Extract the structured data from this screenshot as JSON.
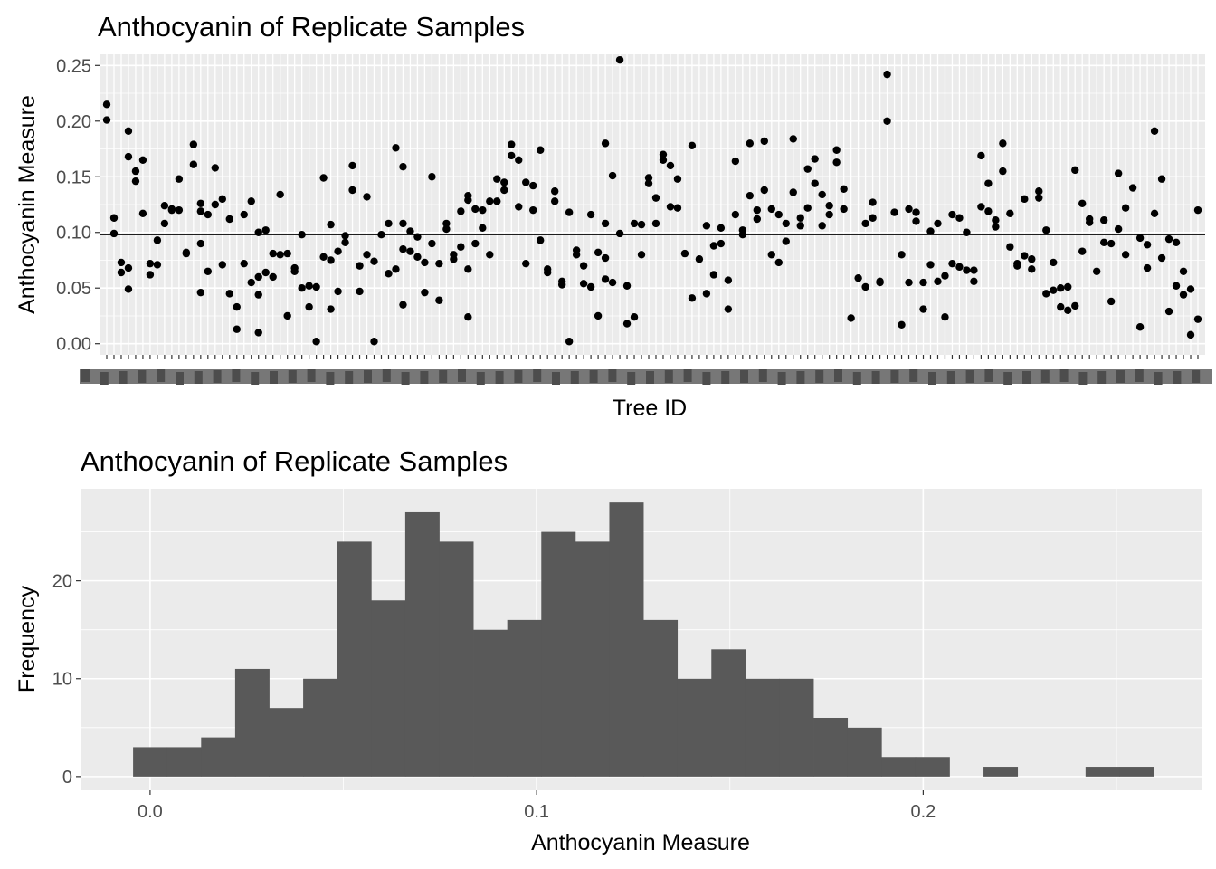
{
  "chart_data": [
    {
      "type": "scatter",
      "title": "Anthocyanin of Replicate Samples",
      "xlabel": "Tree ID",
      "ylabel": "Anthocyanin Measure",
      "ylim": [
        -0.01,
        0.26
      ],
      "yticks": [
        0.0,
        0.05,
        0.1,
        0.15,
        0.2,
        0.25
      ],
      "ytick_labels": [
        "0.00",
        "0.05",
        "0.10",
        "0.15",
        "0.20",
        "0.25"
      ],
      "grid": true,
      "hline": 0.098,
      "xtick_labels_note": "overlapping, illegible tree ID labels",
      "points": [
        [
          1,
          0.215
        ],
        [
          1,
          0.201
        ],
        [
          2,
          0.113
        ],
        [
          2,
          0.099
        ],
        [
          3,
          0.073
        ],
        [
          3,
          0.064
        ],
        [
          4,
          0.191
        ],
        [
          4,
          0.168
        ],
        [
          4,
          0.068
        ],
        [
          4,
          0.049
        ],
        [
          5,
          0.155
        ],
        [
          5,
          0.146
        ],
        [
          6,
          0.165
        ],
        [
          6,
          0.117
        ],
        [
          7,
          0.072
        ],
        [
          7,
          0.062
        ],
        [
          8,
          0.093
        ],
        [
          8,
          0.071
        ],
        [
          9,
          0.124
        ],
        [
          9,
          0.108
        ],
        [
          10,
          0.121
        ],
        [
          10,
          0.12
        ],
        [
          11,
          0.148
        ],
        [
          11,
          0.12
        ],
        [
          12,
          0.081
        ],
        [
          12,
          0.082
        ],
        [
          13,
          0.179
        ],
        [
          13,
          0.161
        ],
        [
          14,
          0.126
        ],
        [
          14,
          0.119
        ],
        [
          14,
          0.09
        ],
        [
          14,
          0.046
        ],
        [
          15,
          0.116
        ],
        [
          15,
          0.065
        ],
        [
          16,
          0.158
        ],
        [
          16,
          0.125
        ],
        [
          17,
          0.13
        ],
        [
          17,
          0.071
        ],
        [
          18,
          0.112
        ],
        [
          18,
          0.045
        ],
        [
          19,
          0.033
        ],
        [
          19,
          0.013
        ],
        [
          20,
          0.116
        ],
        [
          20,
          0.072
        ],
        [
          21,
          0.128
        ],
        [
          21,
          0.055
        ],
        [
          22,
          0.1
        ],
        [
          22,
          0.06
        ],
        [
          22,
          0.044
        ],
        [
          22,
          0.01
        ],
        [
          23,
          0.102
        ],
        [
          23,
          0.064
        ],
        [
          24,
          0.081
        ],
        [
          24,
          0.06
        ],
        [
          25,
          0.134
        ],
        [
          25,
          0.08
        ],
        [
          26,
          0.025
        ],
        [
          26,
          0.081
        ],
        [
          27,
          0.068
        ],
        [
          27,
          0.065
        ],
        [
          28,
          0.098
        ],
        [
          28,
          0.05
        ],
        [
          29,
          0.033
        ],
        [
          29,
          0.052
        ],
        [
          30,
          0.051
        ],
        [
          30,
          0.002
        ],
        [
          31,
          0.149
        ],
        [
          31,
          0.078
        ],
        [
          32,
          0.107
        ],
        [
          32,
          0.075
        ],
        [
          32,
          0.031
        ],
        [
          33,
          0.083
        ],
        [
          33,
          0.047
        ],
        [
          34,
          0.097
        ],
        [
          34,
          0.091
        ],
        [
          35,
          0.16
        ],
        [
          35,
          0.138
        ],
        [
          36,
          0.07
        ],
        [
          36,
          0.047
        ],
        [
          37,
          0.132
        ],
        [
          37,
          0.08
        ],
        [
          38,
          0.074
        ],
        [
          38,
          0.002
        ],
        [
          39,
          0.098
        ],
        [
          40,
          0.108
        ],
        [
          40,
          0.063
        ],
        [
          41,
          0.176
        ],
        [
          41,
          0.067
        ],
        [
          42,
          0.159
        ],
        [
          42,
          0.108
        ],
        [
          42,
          0.085
        ],
        [
          42,
          0.035
        ],
        [
          43,
          0.101
        ],
        [
          43,
          0.083
        ],
        [
          44,
          0.096
        ],
        [
          44,
          0.078
        ],
        [
          45,
          0.073
        ],
        [
          45,
          0.046
        ],
        [
          46,
          0.15
        ],
        [
          46,
          0.09
        ],
        [
          47,
          0.072
        ],
        [
          47,
          0.039
        ],
        [
          48,
          0.108
        ],
        [
          48,
          0.103
        ],
        [
          49,
          0.08
        ],
        [
          49,
          0.076
        ],
        [
          50,
          0.119
        ],
        [
          50,
          0.087
        ],
        [
          51,
          0.133
        ],
        [
          51,
          0.129
        ],
        [
          51,
          0.067
        ],
        [
          51,
          0.024
        ],
        [
          52,
          0.121
        ],
        [
          52,
          0.09
        ],
        [
          53,
          0.12
        ],
        [
          53,
          0.104
        ],
        [
          54,
          0.128
        ],
        [
          54,
          0.08
        ],
        [
          55,
          0.148
        ],
        [
          55,
          0.128
        ],
        [
          56,
          0.145
        ],
        [
          56,
          0.138
        ],
        [
          57,
          0.179
        ],
        [
          57,
          0.169
        ],
        [
          58,
          0.165
        ],
        [
          58,
          0.123
        ],
        [
          59,
          0.145
        ],
        [
          59,
          0.072
        ],
        [
          60,
          0.142
        ],
        [
          60,
          0.12
        ],
        [
          61,
          0.174
        ],
        [
          61,
          0.093
        ],
        [
          62,
          0.067
        ],
        [
          62,
          0.064
        ],
        [
          63,
          0.137
        ],
        [
          63,
          0.128
        ],
        [
          64,
          0.056
        ],
        [
          64,
          0.053
        ],
        [
          65,
          0.118
        ],
        [
          65,
          0.002
        ],
        [
          66,
          0.084
        ],
        [
          66,
          0.08
        ],
        [
          67,
          0.07
        ],
        [
          67,
          0.054
        ],
        [
          68,
          0.116
        ],
        [
          68,
          0.051
        ],
        [
          69,
          0.082
        ],
        [
          69,
          0.025
        ],
        [
          70,
          0.18
        ],
        [
          70,
          0.108
        ],
        [
          70,
          0.077
        ],
        [
          70,
          0.058
        ],
        [
          71,
          0.151
        ],
        [
          71,
          0.055
        ],
        [
          72,
          0.255
        ],
        [
          72,
          0.099
        ],
        [
          73,
          0.052
        ],
        [
          73,
          0.018
        ],
        [
          74,
          0.108
        ],
        [
          74,
          0.024
        ],
        [
          75,
          0.107
        ],
        [
          75,
          0.08
        ],
        [
          76,
          0.149
        ],
        [
          76,
          0.144
        ],
        [
          77,
          0.131
        ],
        [
          77,
          0.108
        ],
        [
          78,
          0.17
        ],
        [
          78,
          0.165
        ],
        [
          79,
          0.16
        ],
        [
          79,
          0.123
        ],
        [
          80,
          0.148
        ],
        [
          80,
          0.122
        ],
        [
          81,
          0.081
        ],
        [
          82,
          0.178
        ],
        [
          82,
          0.041
        ],
        [
          83,
          0.076
        ],
        [
          84,
          0.106
        ],
        [
          84,
          0.045
        ],
        [
          85,
          0.088
        ],
        [
          85,
          0.062
        ],
        [
          86,
          0.104
        ],
        [
          86,
          0.09
        ],
        [
          87,
          0.057
        ],
        [
          87,
          0.031
        ],
        [
          88,
          0.164
        ],
        [
          88,
          0.116
        ],
        [
          89,
          0.102
        ],
        [
          89,
          0.098
        ],
        [
          90,
          0.18
        ],
        [
          90,
          0.133
        ],
        [
          91,
          0.12
        ],
        [
          91,
          0.112
        ],
        [
          92,
          0.182
        ],
        [
          92,
          0.138
        ],
        [
          93,
          0.121
        ],
        [
          93,
          0.08
        ],
        [
          94,
          0.116
        ],
        [
          94,
          0.073
        ],
        [
          95,
          0.108
        ],
        [
          95,
          0.092
        ],
        [
          96,
          0.184
        ],
        [
          96,
          0.136
        ],
        [
          97,
          0.113
        ],
        [
          97,
          0.106
        ],
        [
          98,
          0.157
        ],
        [
          98,
          0.122
        ],
        [
          99,
          0.166
        ],
        [
          99,
          0.144
        ],
        [
          100,
          0.134
        ],
        [
          100,
          0.106
        ],
        [
          101,
          0.124
        ],
        [
          101,
          0.116
        ],
        [
          102,
          0.174
        ],
        [
          102,
          0.163
        ],
        [
          103,
          0.139
        ],
        [
          103,
          0.121
        ],
        [
          104,
          0.023
        ],
        [
          105,
          0.059
        ],
        [
          106,
          0.108
        ],
        [
          106,
          0.051
        ],
        [
          107,
          0.127
        ],
        [
          107,
          0.113
        ],
        [
          108,
          0.056
        ],
        [
          108,
          0.055
        ],
        [
          109,
          0.242
        ],
        [
          109,
          0.2
        ],
        [
          110,
          0.118
        ],
        [
          111,
          0.08
        ],
        [
          111,
          0.017
        ],
        [
          112,
          0.121
        ],
        [
          112,
          0.055
        ],
        [
          113,
          0.118
        ],
        [
          113,
          0.11
        ],
        [
          114,
          0.055
        ],
        [
          114,
          0.031
        ],
        [
          115,
          0.101
        ],
        [
          115,
          0.071
        ],
        [
          116,
          0.108
        ],
        [
          116,
          0.056
        ],
        [
          117,
          0.061
        ],
        [
          117,
          0.024
        ],
        [
          118,
          0.116
        ],
        [
          118,
          0.072
        ],
        [
          119,
          0.113
        ],
        [
          119,
          0.069
        ],
        [
          120,
          0.1
        ],
        [
          120,
          0.066
        ],
        [
          121,
          0.066
        ],
        [
          121,
          0.056
        ],
        [
          122,
          0.169
        ],
        [
          122,
          0.123
        ],
        [
          123,
          0.144
        ],
        [
          123,
          0.119
        ],
        [
          124,
          0.111
        ],
        [
          124,
          0.105
        ],
        [
          125,
          0.18
        ],
        [
          125,
          0.155
        ],
        [
          126,
          0.117
        ],
        [
          126,
          0.087
        ],
        [
          127,
          0.072
        ],
        [
          127,
          0.07
        ],
        [
          128,
          0.13
        ],
        [
          128,
          0.079
        ],
        [
          129,
          0.076
        ],
        [
          129,
          0.067
        ],
        [
          130,
          0.137
        ],
        [
          130,
          0.131
        ],
        [
          131,
          0.102
        ],
        [
          131,
          0.045
        ],
        [
          132,
          0.073
        ],
        [
          132,
          0.048
        ],
        [
          133,
          0.05
        ],
        [
          133,
          0.033
        ],
        [
          134,
          0.051
        ],
        [
          134,
          0.03
        ],
        [
          135,
          0.034
        ],
        [
          135,
          0.156
        ],
        [
          136,
          0.126
        ],
        [
          136,
          0.083
        ],
        [
          137,
          0.112
        ],
        [
          137,
          0.109
        ],
        [
          138,
          0.065
        ],
        [
          139,
          0.111
        ],
        [
          139,
          0.091
        ],
        [
          140,
          0.09
        ],
        [
          140,
          0.038
        ],
        [
          141,
          0.153
        ],
        [
          141,
          0.103
        ],
        [
          142,
          0.122
        ],
        [
          142,
          0.08
        ],
        [
          143,
          0.14
        ],
        [
          144,
          0.095
        ],
        [
          144,
          0.015
        ],
        [
          145,
          0.089
        ],
        [
          145,
          0.068
        ],
        [
          146,
          0.191
        ],
        [
          146,
          0.117
        ],
        [
          147,
          0.148
        ],
        [
          147,
          0.077
        ],
        [
          148,
          0.094
        ],
        [
          148,
          0.029
        ],
        [
          149,
          0.091
        ],
        [
          149,
          0.052
        ],
        [
          150,
          0.065
        ],
        [
          150,
          0.044
        ],
        [
          151,
          0.049
        ],
        [
          151,
          0.008
        ],
        [
          152,
          0.12
        ],
        [
          152,
          0.022
        ]
      ]
    },
    {
      "type": "bar",
      "subtype": "histogram",
      "title": "Anthocyanin of Replicate Samples",
      "xlabel": "Anthocyanin Measure",
      "ylabel": "Frequency",
      "xlim": [
        -0.018,
        0.272
      ],
      "ylim": [
        -1.4,
        29.4
      ],
      "xticks": [
        0.0,
        0.1,
        0.2
      ],
      "xtick_labels": [
        "0.0",
        "0.1",
        "0.2"
      ],
      "yticks": [
        0,
        10,
        20
      ],
      "ytick_labels": [
        "0",
        "10",
        "20"
      ],
      "grid": true,
      "bin_start": -0.0044,
      "bin_width": 0.0088,
      "values": [
        3,
        3,
        4,
        11,
        7,
        10,
        24,
        18,
        27,
        24,
        15,
        16,
        25,
        24,
        28,
        16,
        10,
        13,
        10,
        10,
        6,
        5,
        2,
        2,
        0,
        1,
        0,
        0,
        1,
        1
      ]
    }
  ],
  "colors": {
    "panel_bg": "#ebebeb",
    "grid": "#ffffff",
    "points": "#000000",
    "bars": "#595959",
    "tick_text": "#4d4d4d",
    "text": "#000000"
  }
}
